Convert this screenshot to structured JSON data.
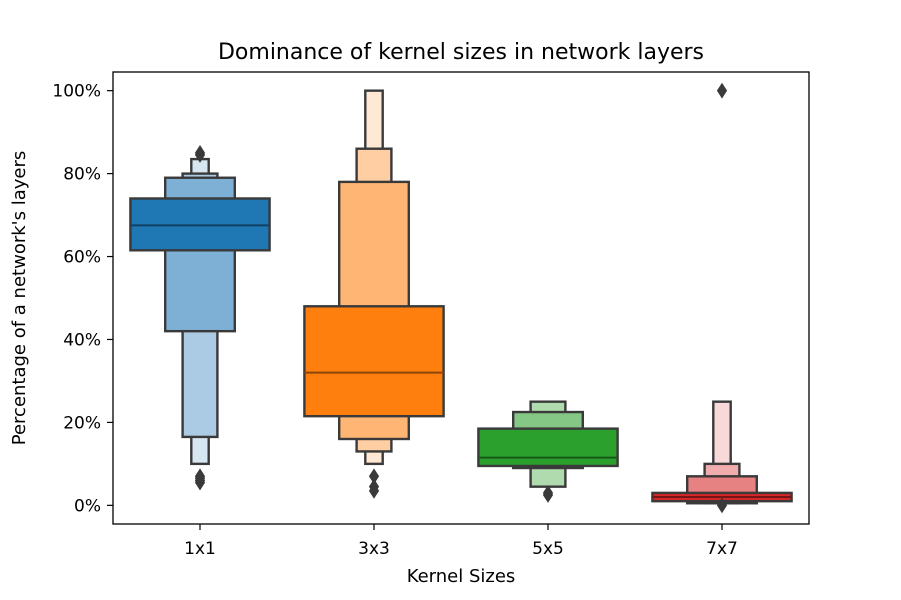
{
  "chart_data": {
    "type": "boxen",
    "title": "Dominance of kernel sizes in network layers",
    "xlabel": "Kernel Sizes",
    "ylabel": "Percentage of a network's layers",
    "ylim": [
      -0.045,
      1.045
    ],
    "yticks": [
      0,
      0.2,
      0.4,
      0.6,
      0.8,
      1.0
    ],
    "ytick_labels": [
      "0%",
      "20%",
      "40%",
      "60%",
      "80%",
      "100%"
    ],
    "categories": [
      "1x1",
      "3x3",
      "5x5",
      "7x7"
    ],
    "grid": false,
    "colors": [
      "#1f77b4",
      "#ff7f0e",
      "#2ca02c",
      "#d62728"
    ],
    "series": [
      {
        "category": "1x1",
        "median": 0.675,
        "boxes": [
          [
            0.615,
            0.74
          ],
          [
            0.42,
            0.79
          ],
          [
            0.165,
            0.8
          ],
          [
            0.1,
            0.835
          ]
        ],
        "outliers": [
          0.055,
          0.06,
          0.065,
          0.07,
          0.845,
          0.85
        ]
      },
      {
        "category": "3x3",
        "median": 0.32,
        "boxes": [
          [
            0.215,
            0.48
          ],
          [
            0.16,
            0.78
          ],
          [
            0.13,
            0.86
          ],
          [
            0.1,
            1.0
          ]
        ],
        "outliers": [
          0.035,
          0.045,
          0.07
        ]
      },
      {
        "category": "5x5",
        "median": 0.115,
        "boxes": [
          [
            0.095,
            0.185
          ],
          [
            0.09,
            0.225
          ],
          [
            0.045,
            0.25
          ]
        ],
        "outliers": [
          0.025,
          0.03
        ]
      },
      {
        "category": "7x7",
        "median": 0.02,
        "boxes": [
          [
            0.01,
            0.03
          ],
          [
            0.005,
            0.07
          ],
          [
            0.005,
            0.1
          ],
          [
            0.005,
            0.25
          ]
        ],
        "outliers": [
          0.0,
          1.0
        ]
      }
    ]
  }
}
